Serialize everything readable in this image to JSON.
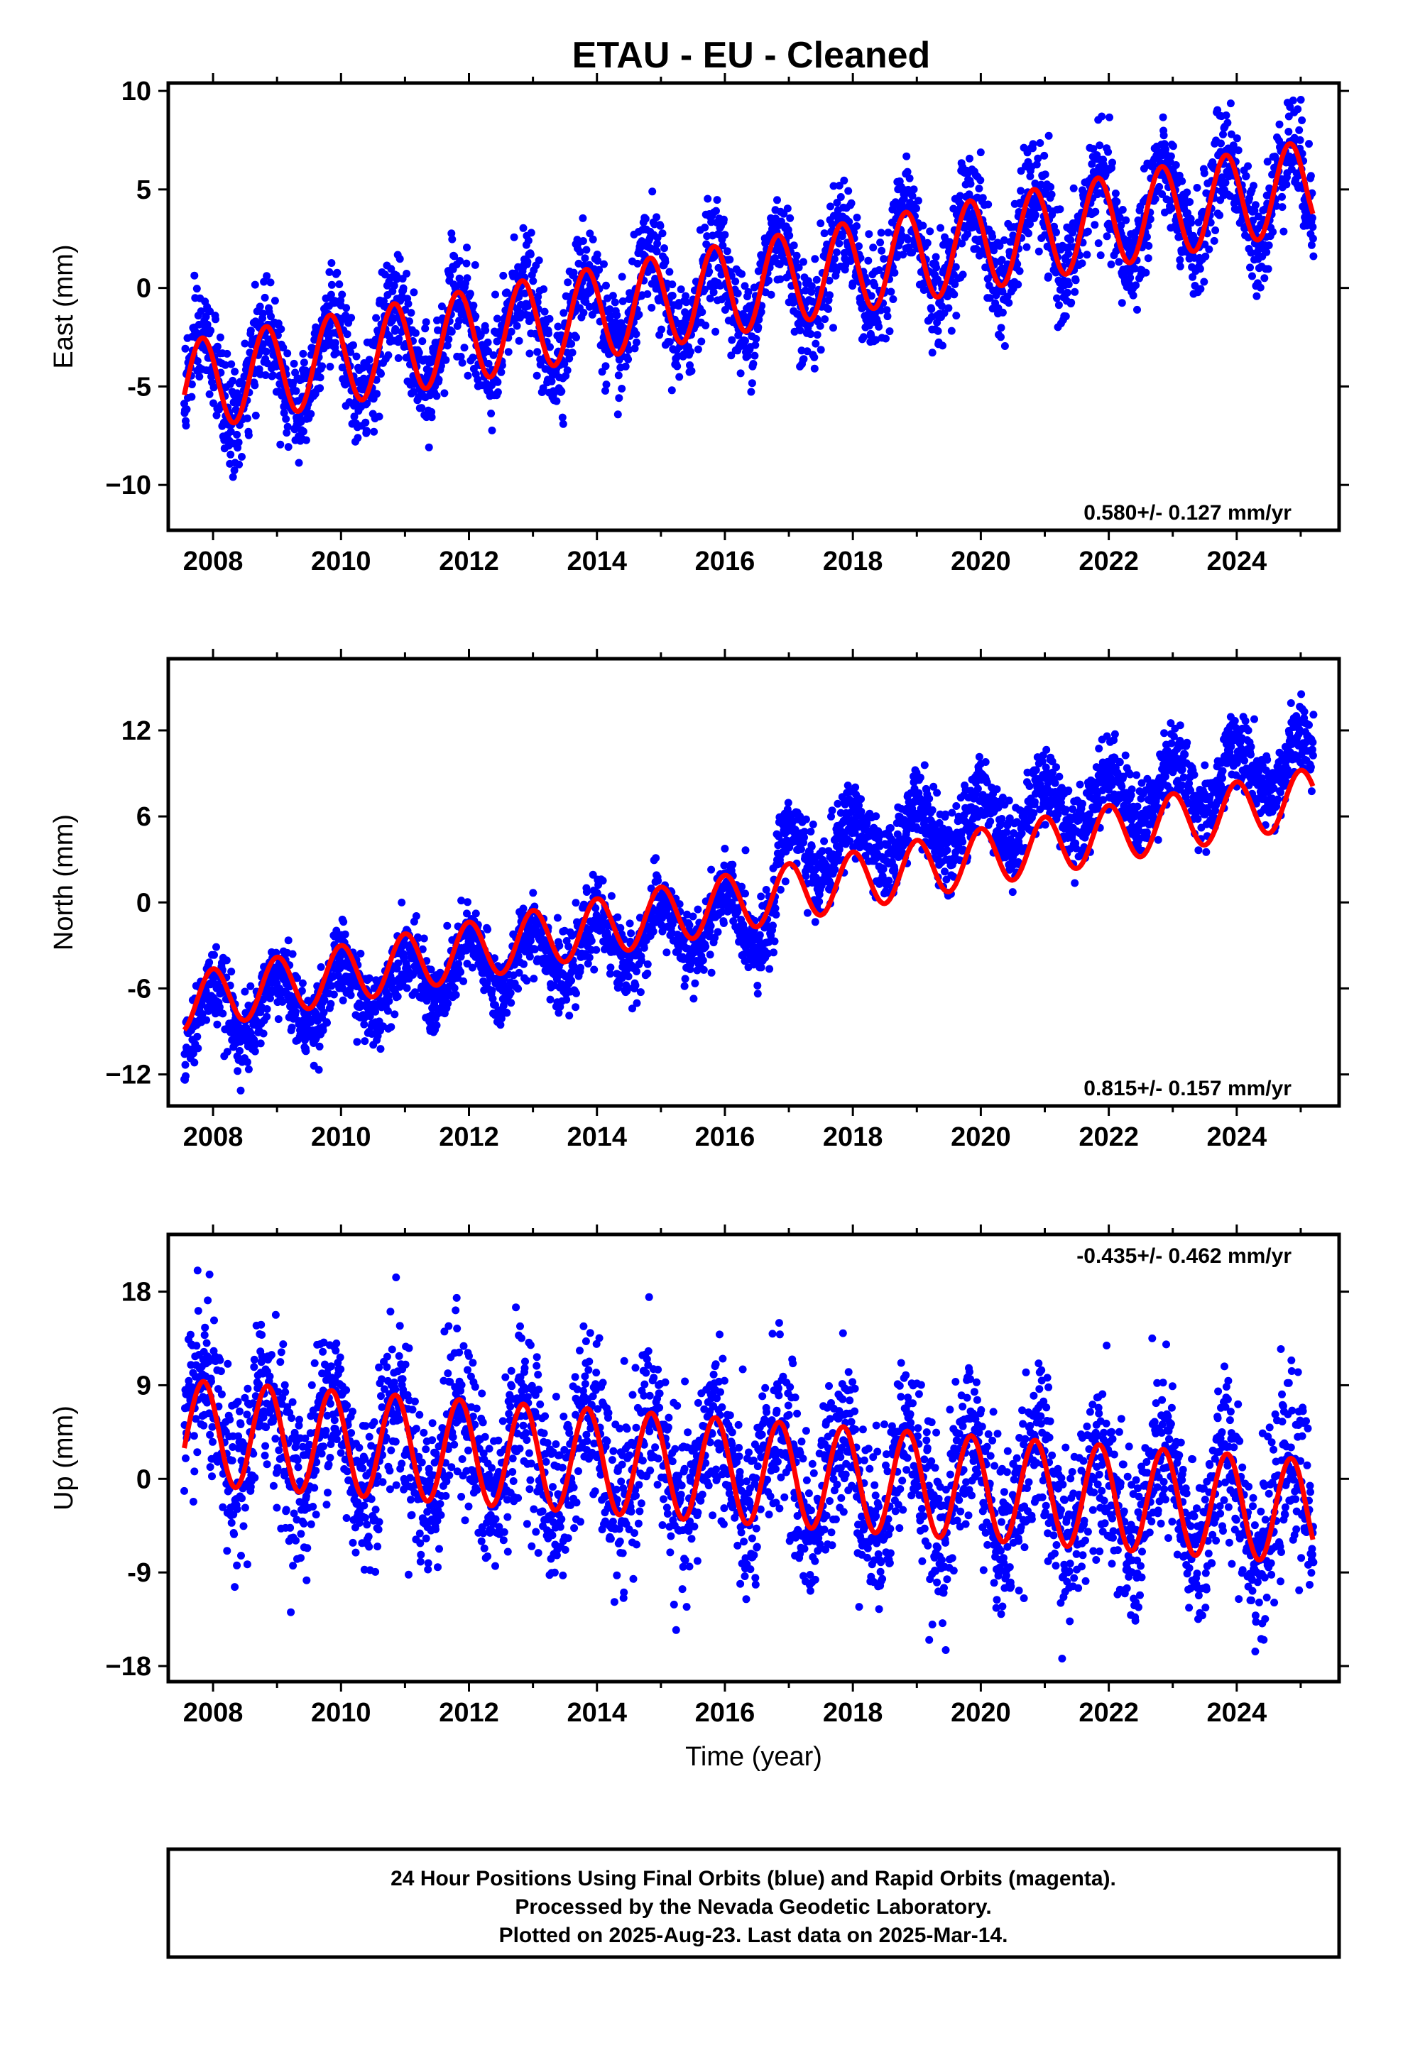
{
  "title": "ETAU  - EU - Cleaned",
  "colors": {
    "points": "#0000ff",
    "fit": "#ff0000",
    "frame": "#000000"
  },
  "caption": [
    "24 Hour Positions Using Final Orbits (blue) and Rapid Orbits (magenta).",
    "Processed by the Nevada Geodetic Laboratory.",
    "Plotted on 2025-Aug-23. Last data on 2025-Mar-14."
  ],
  "chart_data": [
    {
      "type": "scatter",
      "ylabel": "East (mm)",
      "xlabel": "",
      "rate_label": "0.580+/- 0.127 mm/yr",
      "xlim": [
        2007.3,
        2025.6
      ],
      "ylim": [
        -12.3,
        10.4
      ],
      "xticks": [
        2008,
        2010,
        2012,
        2014,
        2016,
        2018,
        2020,
        2022,
        2024
      ],
      "yticks": [
        10,
        5,
        0,
        -5,
        -10
      ],
      "ytick_labels": [
        "10",
        "5",
        "0",
        "-5",
        "−10"
      ],
      "grid": false,
      "data_range": [
        2007.55,
        2025.2
      ],
      "fit_model": {
        "t0": 2007.55,
        "offset": -5.0,
        "slope": 0.58,
        "amp": 2.3,
        "phase_day": 0.58,
        "noise": 1.3,
        "step_2008": 2.0,
        "step_2018": 0.7,
        "step_2021": 1.0
      },
      "series": [
        {
          "name": "Final Orbits (blue)",
          "values": "daily positions 2007.55-2025.2"
        },
        {
          "name": "Fit",
          "values": "linear trend + annual term"
        }
      ]
    },
    {
      "type": "scatter",
      "ylabel": "North (mm)",
      "xlabel": "",
      "rate_label": "0.815+/- 0.157 mm/yr",
      "xlim": [
        2007.3,
        2025.6
      ],
      "ylim": [
        -14.2,
        17.0
      ],
      "xticks": [
        2008,
        2010,
        2012,
        2014,
        2016,
        2018,
        2020,
        2022,
        2024
      ],
      "yticks": [
        12,
        6,
        0,
        -6,
        -12
      ],
      "ytick_labels": [
        "12",
        "6",
        "0",
        "-6",
        "−12"
      ],
      "grid": false,
      "data_range": [
        2007.55,
        2025.2
      ],
      "fit_model": {
        "t0": 2007.55,
        "offset": -7.0,
        "slope": 0.815,
        "amp": 2.0,
        "phase_day": 0.75,
        "noise": 1.3,
        "step_2008": 2.0,
        "step_2018": 0.7,
        "step_2021": 1.0
      },
      "series": [
        {
          "name": "Final Orbits (blue)",
          "values": "daily positions 2007.55-2025.2"
        },
        {
          "name": "Fit",
          "values": "linear trend + annual term"
        }
      ]
    },
    {
      "type": "scatter",
      "ylabel": "Up (mm)",
      "xlabel": "Time (year)",
      "rate_label": "-0.435+/- 0.462 mm/yr",
      "xlim": [
        2007.3,
        2025.6
      ],
      "ylim": [
        -19.5,
        23.5
      ],
      "xticks": [
        2008,
        2010,
        2012,
        2014,
        2016,
        2018,
        2020,
        2022,
        2024
      ],
      "yticks": [
        18,
        9,
        0,
        -9,
        -18
      ],
      "ytick_labels": [
        "18",
        "9",
        "0",
        "-9",
        "−18"
      ],
      "grid": false,
      "data_range": [
        2007.55,
        2025.2
      ],
      "fit_model": {
        "t0": 2007.55,
        "offset": 4.5,
        "slope": -0.435,
        "amp": 5.0,
        "phase_day": 0.6,
        "noise": 4.0,
        "step_2008": 0,
        "step_2018": 0,
        "step_2021": 0
      },
      "series": [
        {
          "name": "Final Orbits (blue)",
          "values": "daily positions 2007.55-2025.2"
        },
        {
          "name": "Fit",
          "values": "linear trend + annual term"
        }
      ]
    }
  ]
}
